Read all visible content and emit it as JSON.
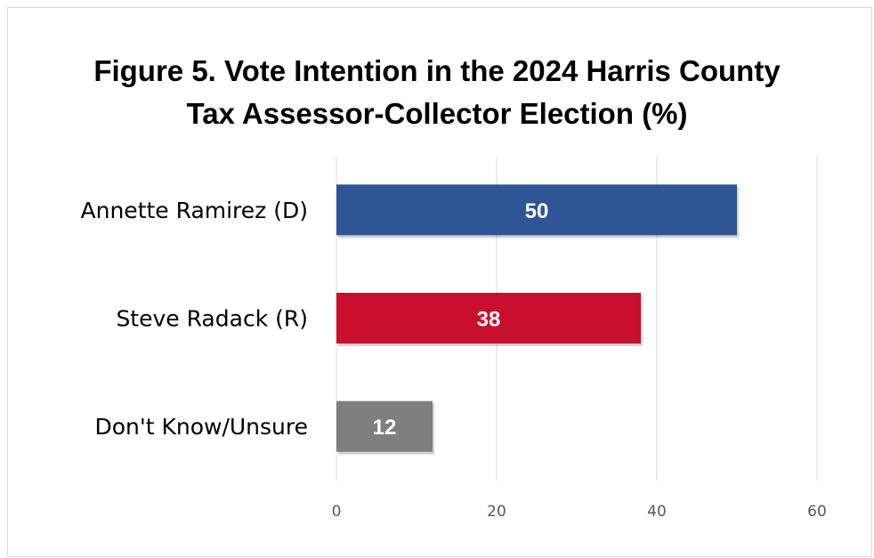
{
  "chart_data": {
    "type": "bar",
    "orientation": "horizontal",
    "title_lines": [
      "Figure 5. Vote Intention in the 2024 Harris County",
      "Tax Assessor-Collector Election (%)"
    ],
    "categories": [
      "Annette Ramirez (D)",
      "Steve Radack (R)",
      "Don't Know/Unsure"
    ],
    "values": [
      50,
      38,
      12
    ],
    "data_labels": [
      "50",
      "38",
      "12"
    ],
    "colors": [
      "#2f5597",
      "#c8102e",
      "#7f7f7f"
    ],
    "xlim": [
      0,
      60
    ],
    "x_ticks": [
      0,
      20,
      40,
      60
    ],
    "x_tick_labels": [
      "0",
      "20",
      "40",
      "60"
    ],
    "grid": true,
    "legend": "none"
  }
}
